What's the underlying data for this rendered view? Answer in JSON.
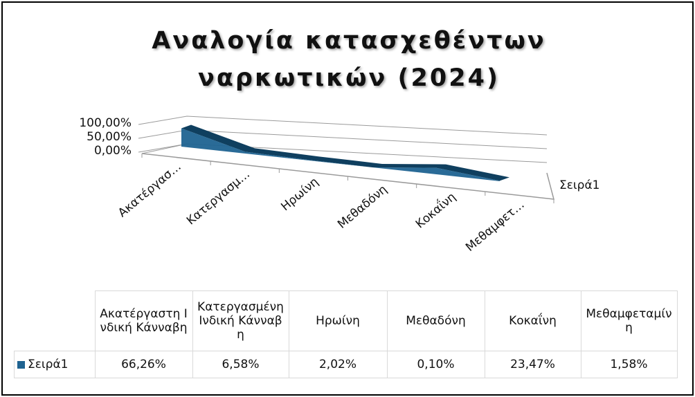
{
  "chart_data": {
    "type": "area3d",
    "title": "Αναλογία κατασχεθέντων ναρκωτικών (2024)",
    "categories": [
      "Ακατέργαστη Ινδική Κάνναβη",
      "Κατεργασμένη Ινδική Κάνναβη",
      "Ηρωίνη",
      "Μεθαδόνη",
      "Κοκαΐνη",
      "Μεθαμφεταμίνη"
    ],
    "category_axis_labels": [
      "Ακατέργασ…",
      "Κατεργασμ…",
      "Ηρωίνη",
      "Μεθαδόνη",
      "Κοκαΐνη",
      "Μεθαμφετ…"
    ],
    "series": [
      {
        "name": "Σειρά1",
        "color": "#1f6391",
        "values": [
          66.26,
          6.58,
          2.02,
          0.1,
          23.47,
          1.58
        ],
        "value_labels": [
          "66,26%",
          "6,58%",
          "2,02%",
          "0,10%",
          "23,47%",
          "1,58%"
        ]
      }
    ],
    "ylim": [
      0,
      100
    ],
    "yticks": [
      {
        "value": 0,
        "label": "0,00%"
      },
      {
        "value": 50,
        "label": "50,00%"
      },
      {
        "value": 100,
        "label": "100,00%"
      }
    ],
    "depth_axis_label": "Σειρά1",
    "grid": true,
    "data_table": true
  }
}
